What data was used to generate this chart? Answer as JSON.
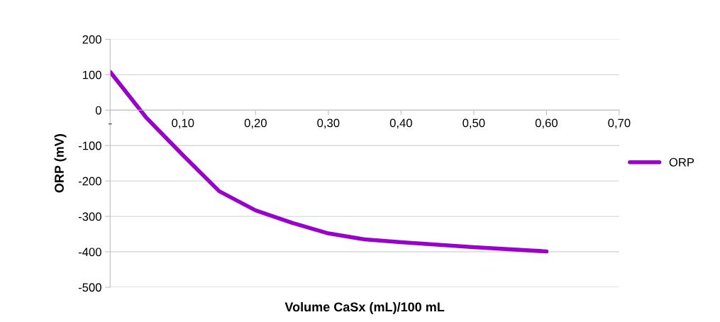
{
  "chart_data": {
    "type": "line",
    "xlabel": "Volume CaSx (mL)/100 mL",
    "ylabel": "ORP (mV)",
    "x": [
      0,
      0.05,
      0.1,
      0.15,
      0.2,
      0.25,
      0.3,
      0.35,
      0.4,
      0.5,
      0.6
    ],
    "series": [
      {
        "name": "ORP",
        "color": "#9900cc",
        "values": [
          108,
          -22,
          -127,
          -229,
          -283,
          -318,
          -348,
          -365,
          -373,
          -387,
          -399
        ]
      }
    ],
    "xlim": [
      0,
      0.7
    ],
    "xticks": [
      {
        "value": 0,
        "label": "-"
      },
      {
        "value": 0.1,
        "label": "0,10"
      },
      {
        "value": 0.2,
        "label": "0,20"
      },
      {
        "value": 0.3,
        "label": "0,30"
      },
      {
        "value": 0.4,
        "label": "0,40"
      },
      {
        "value": 0.5,
        "label": "0,50"
      },
      {
        "value": 0.6,
        "label": "0,60"
      },
      {
        "value": 0.7,
        "label": "0,70"
      }
    ],
    "ylim": [
      -500,
      200
    ],
    "yticks": [
      -500,
      -400,
      -300,
      -200,
      -100,
      0,
      100,
      200
    ],
    "grid": "y",
    "legend": "right",
    "marker": "none",
    "line_style": "solid"
  }
}
